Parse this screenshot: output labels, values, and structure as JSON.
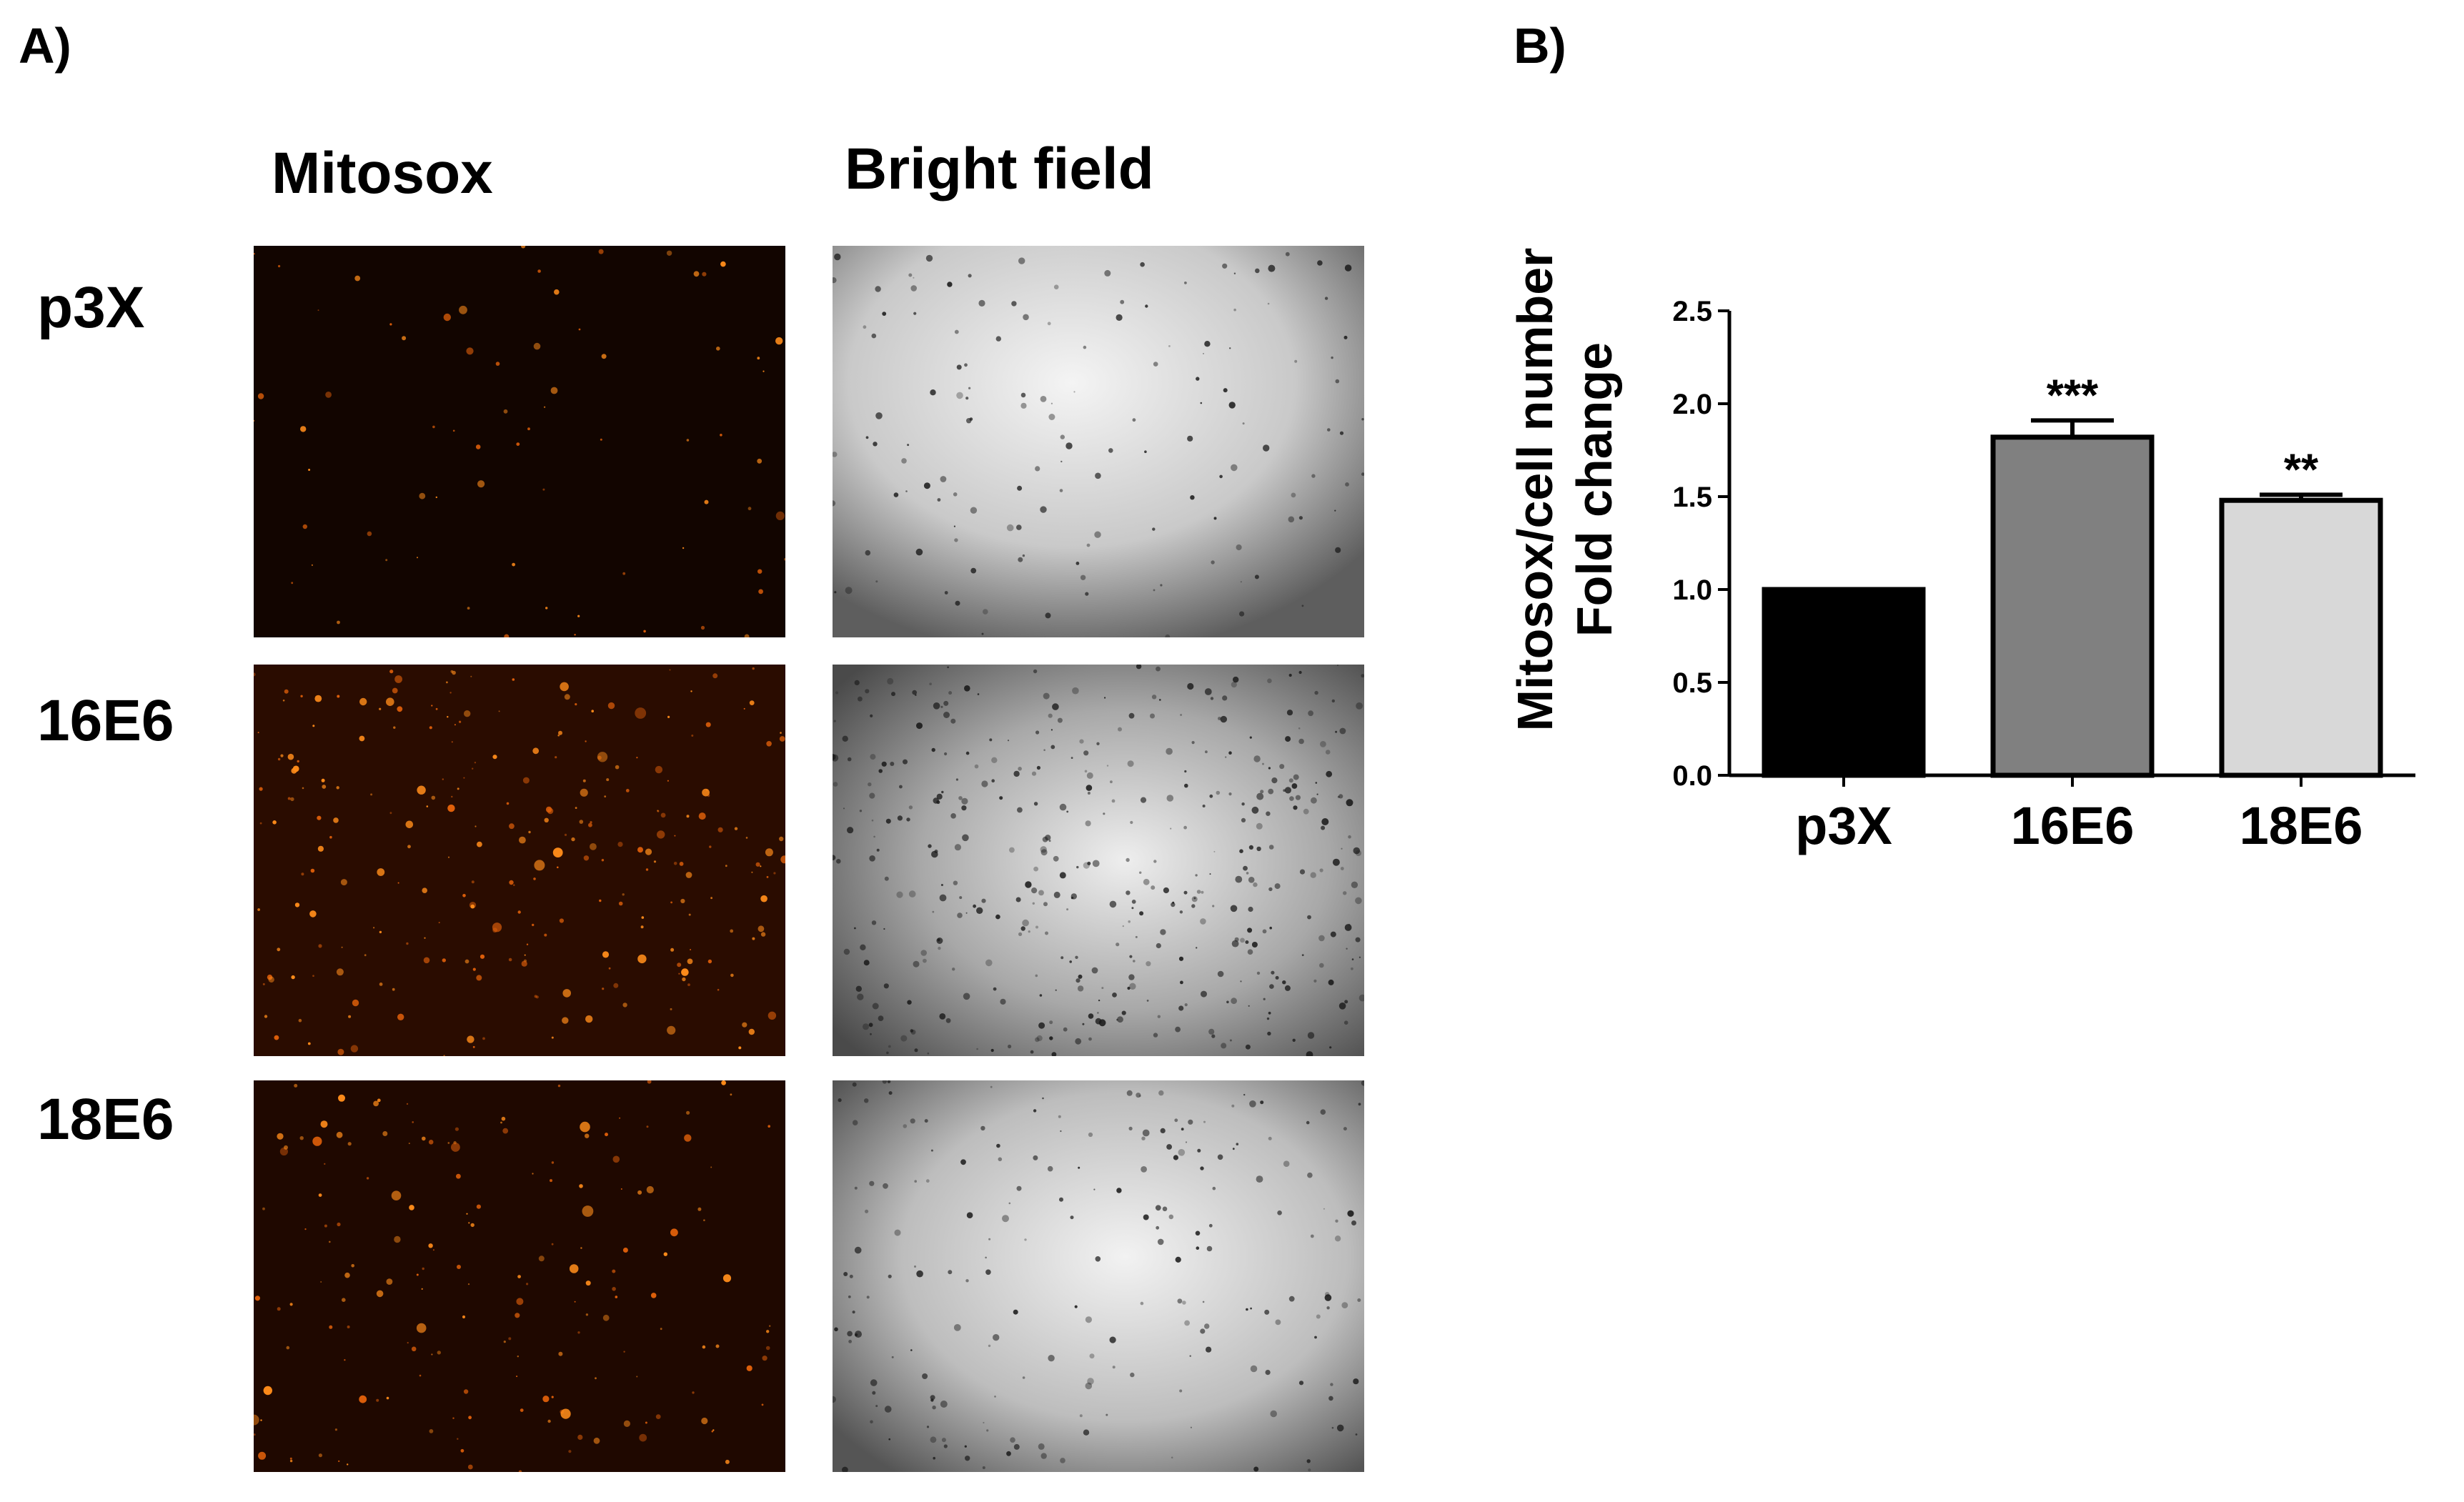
{
  "panel_a": {
    "label": "A)",
    "columns": [
      "Mitosox",
      "Bright field"
    ],
    "rows": [
      "p3X",
      "16E6",
      "18E6"
    ]
  },
  "panel_b": {
    "label": "B)"
  },
  "chart_data": {
    "type": "bar",
    "categories": [
      "p3X",
      "16E6",
      "18E6"
    ],
    "values": [
      1.0,
      1.82,
      1.48
    ],
    "errors": [
      0,
      0.09,
      0.03
    ],
    "significance": [
      "",
      "***",
      "**"
    ],
    "bar_colors": [
      "#000000",
      "#808080",
      "#d8d8d8"
    ],
    "ylabel_line1": "Mitosox/cell number",
    "ylabel_line2": "Fold change",
    "ylim": [
      0,
      2.5
    ],
    "yticks": [
      "0.0",
      "0.5",
      "1.0",
      "1.5",
      "2.0",
      "2.5"
    ],
    "grid": false
  }
}
